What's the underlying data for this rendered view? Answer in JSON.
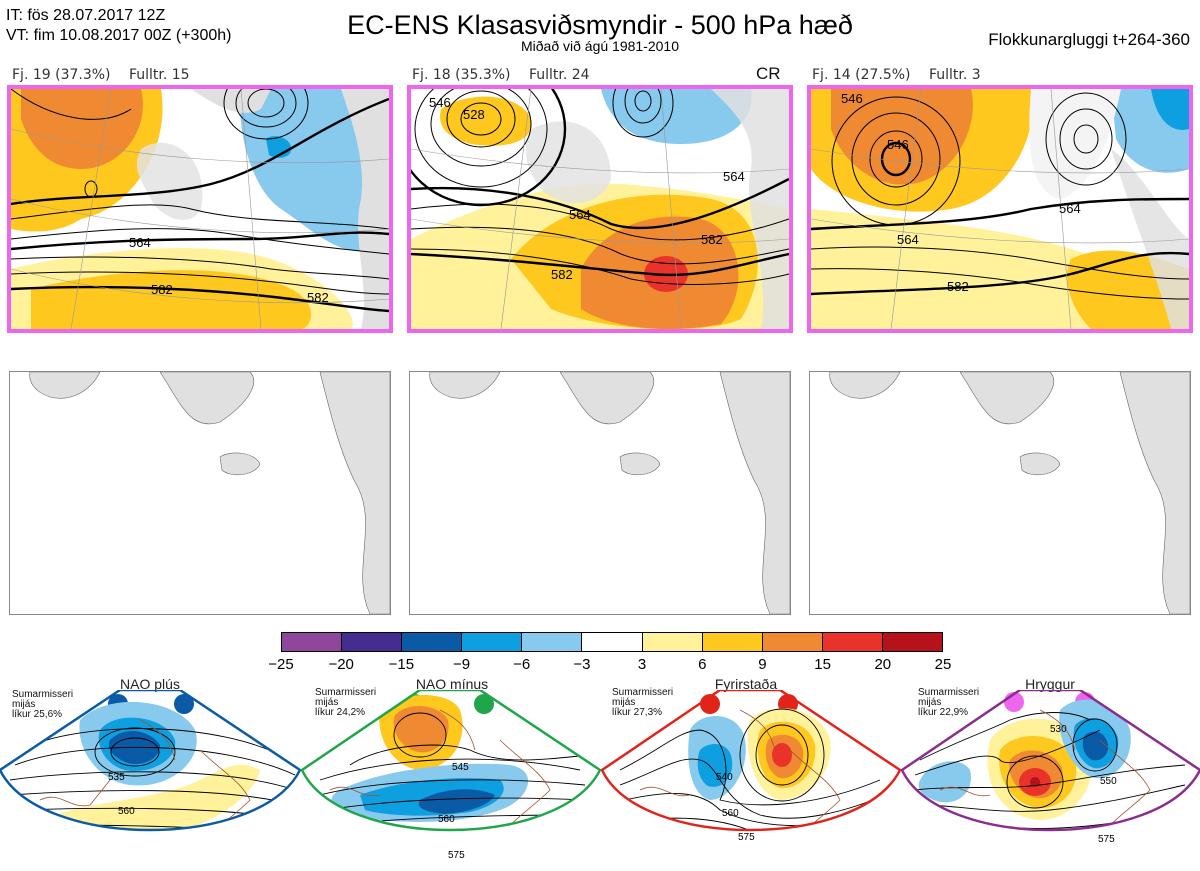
{
  "header": {
    "it_line": "IT: fös 28.07.2017 12Z",
    "vt_line": "VT: fim 10.08.2017 00Z  (+300h)",
    "title": "EC-ENS Klasasviðsmyndir - 500 hPa hæð",
    "subtitle": "Miðað við ágú 1981-2010",
    "window": "Flokkunargluggi t+264-360"
  },
  "clusters": [
    {
      "count": "Fj. 19 (37.3%)",
      "rep": "Fulltr. 15",
      "tag": "",
      "contours": [
        "564",
        "582",
        "582"
      ]
    },
    {
      "count": "Fj. 18 (35.3%)",
      "rep": "Fulltr. 24",
      "tag": "CR",
      "contours": [
        "546",
        "528",
        "564",
        "582",
        "582",
        "564"
      ]
    },
    {
      "count": "Fj. 14 (27.5%)",
      "rep": "Fulltr. 3",
      "tag": "",
      "contours": [
        "546",
        "546",
        "564",
        "564",
        "582"
      ]
    }
  ],
  "colorbar": {
    "colors": [
      "#8f479b",
      "#442d8f",
      "#0b5aa6",
      "#0d9fe0",
      "#88c9ee",
      "#ffffff",
      "#fff29a",
      "#ffc81e",
      "#f08a32",
      "#e9332a",
      "#b5121b"
    ],
    "ticks": [
      "−25",
      "−20",
      "−15",
      "−9",
      "−6",
      "−3",
      "3",
      "6",
      "9",
      "15",
      "20",
      "25"
    ]
  },
  "regimes": [
    {
      "name": "NAO plús",
      "season": "Sumarmisseri",
      "season2": "mijás",
      "prob": "líkur 25,6%",
      "color": "#0b5aa6",
      "labels": [
        "535",
        "560"
      ]
    },
    {
      "name": "NAO mínus",
      "season": "Sumarmisseri",
      "season2": "mijás",
      "prob": "líkur 24,2%",
      "color": "#1fa64a",
      "labels": [
        "545",
        "560",
        "575"
      ]
    },
    {
      "name": "Fyrirstaða",
      "season": "Sumarmisseri",
      "season2": "mijás",
      "prob": "líkur 27,3%",
      "color": "#e2231a",
      "labels": [
        "540",
        "560",
        "575"
      ]
    },
    {
      "name": "Hryggur",
      "season": "Sumarmisseri",
      "season2": "mijás",
      "prob": "líkur 22,9%",
      "color": "#8b2d8f",
      "labels": [
        "530",
        "550",
        "575"
      ]
    }
  ]
}
